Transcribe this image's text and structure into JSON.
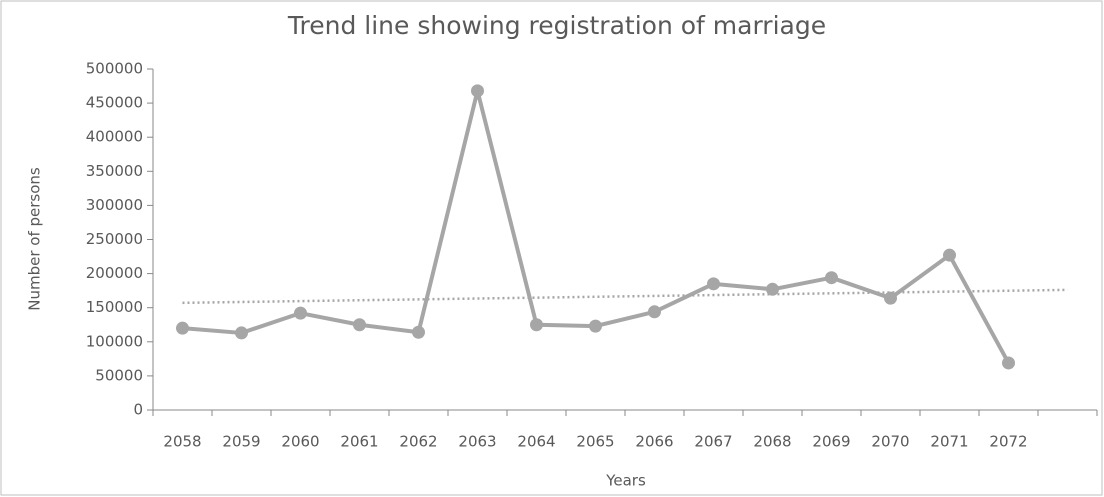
{
  "chart_data": {
    "type": "line",
    "title": "Trend line showing registration of marriage",
    "x_label": "Years",
    "y_label": "Number of persons",
    "categories": [
      "2058",
      "2059",
      "2060",
      "2061",
      "2062",
      "2063",
      "2064",
      "2065",
      "2066",
      "2067",
      "2068",
      "2069",
      "2070",
      "2071",
      "2072",
      null
    ],
    "series": [
      {
        "color": "#a6a6a6",
        "values": [
          120000,
          113000,
          142000,
          125000,
          114000,
          468000,
          125000,
          123000,
          144000,
          185000,
          177000,
          194000,
          164000,
          227000,
          69000,
          null
        ]
      }
    ],
    "ylim": [
      0,
      500000
    ],
    "yticks": [
      0,
      50000,
      100000,
      150000,
      200000,
      250000,
      300000,
      350000,
      400000,
      450000,
      500000
    ],
    "trendline": "linear",
    "grid": false
  }
}
